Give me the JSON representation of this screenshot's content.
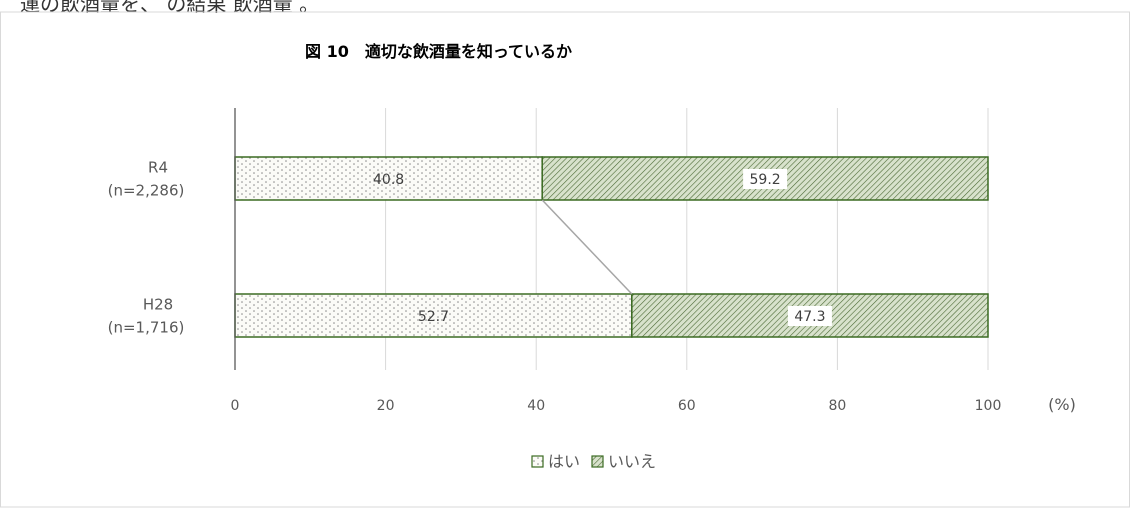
{
  "page_heading_fragment": "運の飲酒量を、 の結果 飲酒量 。",
  "chart_data": {
    "type": "bar",
    "stacked": true,
    "orientation": "horizontal",
    "title": "図 10　適切な飲酒量を知っているか",
    "categories": [
      {
        "label": "R4",
        "sub": "(n=2,286)"
      },
      {
        "label": "H28",
        "sub": "(n=1,716)"
      }
    ],
    "series": [
      {
        "name": "はい",
        "values": [
          40.8,
          52.7
        ],
        "pattern": "dots",
        "color": "#f7f7f2"
      },
      {
        "name": "いいえ",
        "values": [
          59.2,
          47.3
        ],
        "pattern": "hatch",
        "color": "#3f6f2a"
      }
    ],
    "xlim": [
      0,
      100
    ],
    "xticks": [
      "0",
      "20",
      "40",
      "60",
      "80",
      "100"
    ],
    "xunit": "(%)",
    "grid": true,
    "legend_position": "bottom",
    "connector_line": true
  }
}
